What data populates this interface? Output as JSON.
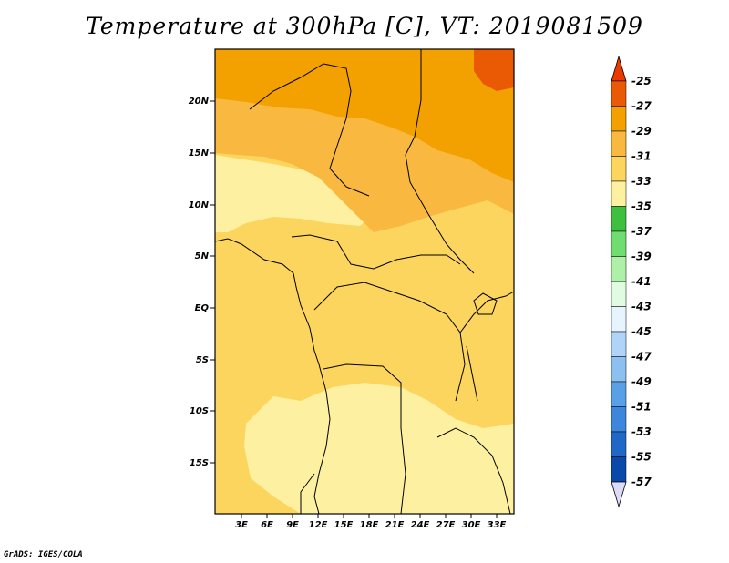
{
  "title": "Temperature at 300hPa [C], VT: 2019081509",
  "credit": "GrADS: IGES/COLA",
  "map": {
    "lat_labels": [
      "20N",
      "15N",
      "10N",
      "5N",
      "EQ",
      "5S",
      "10S",
      "15S"
    ],
    "lon_labels": [
      "3E",
      "6E",
      "9E",
      "12E",
      "15E",
      "18E",
      "21E",
      "24E",
      "27E",
      "30E",
      "33E"
    ],
    "lon_range": [
      0,
      35
    ],
    "lat_range": [
      -20,
      24
    ]
  },
  "colorbar": {
    "levels": [
      "-25",
      "-27",
      "-29",
      "-31",
      "-33",
      "-35",
      "-37",
      "-39",
      "-41",
      "-43",
      "-45",
      "-47",
      "-49",
      "-51",
      "-53",
      "-55",
      "-57"
    ],
    "colors": [
      "#ea5a04",
      "#f3a100",
      "#f9b940",
      "#fcd55e",
      "#fdf0a1",
      "#3fbf3f",
      "#70dd70",
      "#aef0a8",
      "#e0fbe0",
      "#e6f4ff",
      "#afd4f7",
      "#8cc0ef",
      "#5aa0e6",
      "#3c87dc",
      "#1f68c8",
      "#0a48a9",
      "#082c7a"
    ],
    "top_arrow_color": "#ea3a00",
    "bottom_arrow_color": "#dcdcf8"
  },
  "fields": {
    "colors": {
      "t_m33_m35": "#fdf0a1",
      "t_m31_m33": "#fcd55e",
      "t_m29_m31": "#f9b940",
      "t_m27_m29": "#f3a100",
      "t_m25_m27": "#ea5a04"
    }
  }
}
